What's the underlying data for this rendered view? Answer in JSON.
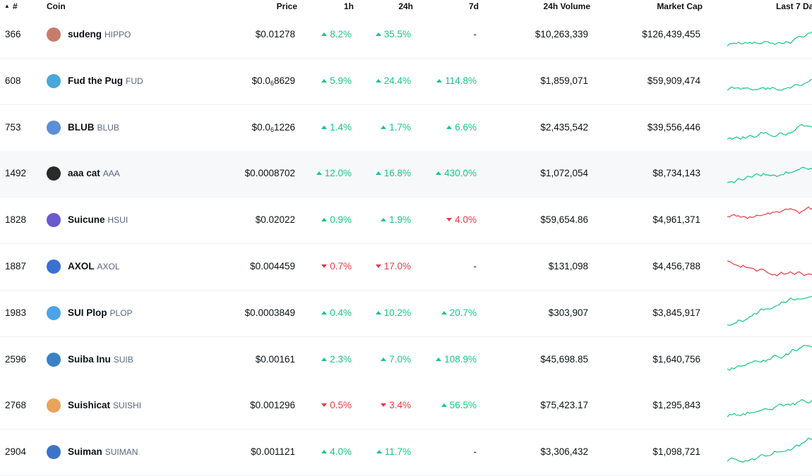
{
  "header": {
    "rank": "#",
    "coin": "Coin",
    "price": "Price",
    "h1": "1h",
    "h24": "24h",
    "d7": "7d",
    "volume": "24h Volume",
    "mcap": "Market Cap",
    "last7": "Last 7 Da"
  },
  "colors": {
    "up": "#16c784",
    "down": "#ea3943"
  },
  "rows": [
    {
      "rank": "366",
      "name": "sudeng",
      "symbol": "HIPPO",
      "icon": "hippo-icon",
      "iconColor": "#c77b6b",
      "price": "$0.01278",
      "h1": "8.2%",
      "h1_dir": "up",
      "h24": "35.5%",
      "h24_dir": "up",
      "d7": "-",
      "d7_dir": "none",
      "volume": "$10,263,339",
      "mcap": "$126,439,455",
      "trend": "up"
    },
    {
      "rank": "608",
      "name": "Fud the Pug",
      "symbol": "FUD",
      "icon": "pug-icon",
      "iconColor": "#4aa7d8",
      "price_pre": "$0.0",
      "price_sub": "6",
      "price_post": "8629",
      "h1": "5.9%",
      "h1_dir": "up",
      "h24": "24.4%",
      "h24_dir": "up",
      "d7": "114.8%",
      "d7_dir": "up",
      "volume": "$1,859,071",
      "mcap": "$59,909,474",
      "trend": "up"
    },
    {
      "rank": "753",
      "name": "BLUB",
      "symbol": "BLUB",
      "icon": "blub-icon",
      "iconColor": "#5b8fd6",
      "price_pre": "$0.0",
      "price_sub": "6",
      "price_post": "1226",
      "h1": "1.4%",
      "h1_dir": "up",
      "h24": "1.7%",
      "h24_dir": "up",
      "d7": "6.6%",
      "d7_dir": "up",
      "volume": "$2,435,542",
      "mcap": "$39,556,446",
      "trend": "up"
    },
    {
      "rank": "1492",
      "name": "aaa cat",
      "symbol": "AAA",
      "icon": "cat-icon",
      "iconColor": "#2a2a2a",
      "price": "$0.0008702",
      "h1": "12.0%",
      "h1_dir": "up",
      "h24": "16.8%",
      "h24_dir": "up",
      "d7": "430.0%",
      "d7_dir": "up",
      "volume": "$1,072,054",
      "mcap": "$8,734,143",
      "trend": "up"
    },
    {
      "rank": "1828",
      "name": "Suicune",
      "symbol": "HSUI",
      "icon": "suicune-icon",
      "iconColor": "#6a5acd",
      "price": "$0.02022",
      "h1": "0.9%",
      "h1_dir": "up",
      "h24": "1.9%",
      "h24_dir": "up",
      "d7": "4.0%",
      "d7_dir": "down",
      "volume": "$59,654.86",
      "mcap": "$4,961,371",
      "trend": "down"
    },
    {
      "rank": "1887",
      "name": "AXOL",
      "symbol": "AXOL",
      "icon": "axol-icon",
      "iconColor": "#3b6fd1",
      "price": "$0.004459",
      "h1": "0.7%",
      "h1_dir": "down",
      "h24": "17.0%",
      "h24_dir": "down",
      "d7": "-",
      "d7_dir": "none",
      "volume": "$131,098",
      "mcap": "$4,456,788",
      "trend": "down"
    },
    {
      "rank": "1983",
      "name": "SUI Plop",
      "symbol": "PLOP",
      "icon": "drop-icon",
      "iconColor": "#4da3e8",
      "price": "$0.0003849",
      "h1": "0.4%",
      "h1_dir": "up",
      "h24": "10.2%",
      "h24_dir": "up",
      "d7": "20.7%",
      "d7_dir": "up",
      "volume": "$303,907",
      "mcap": "$3,845,917",
      "trend": "up"
    },
    {
      "rank": "2596",
      "name": "Suiba Inu",
      "symbol": "SUIB",
      "icon": "shiba-icon",
      "iconColor": "#3a82c4",
      "price": "$0.00161",
      "h1": "2.3%",
      "h1_dir": "up",
      "h24": "7.0%",
      "h24_dir": "up",
      "d7": "108.9%",
      "d7_dir": "up",
      "volume": "$45,698.85",
      "mcap": "$1,640,756",
      "trend": "up"
    },
    {
      "rank": "2768",
      "name": "Suishicat",
      "symbol": "SUISHI",
      "icon": "sushi-cat-icon",
      "iconColor": "#e9a35a",
      "price": "$0.001296",
      "h1": "0.5%",
      "h1_dir": "down",
      "h24": "3.4%",
      "h24_dir": "down",
      "d7": "56.5%",
      "d7_dir": "up",
      "volume": "$75,423.17",
      "mcap": "$1,295,843",
      "trend": "up"
    },
    {
      "rank": "2904",
      "name": "Suiman",
      "symbol": "SUIMAN",
      "icon": "suiman-icon",
      "iconColor": "#3c74c9",
      "price": "$0.001121",
      "h1": "4.0%",
      "h1_dir": "up",
      "h24": "11.7%",
      "h24_dir": "up",
      "d7": "-",
      "d7_dir": "none",
      "volume": "$3,306,432",
      "mcap": "$1,098,721",
      "trend": "up"
    }
  ]
}
